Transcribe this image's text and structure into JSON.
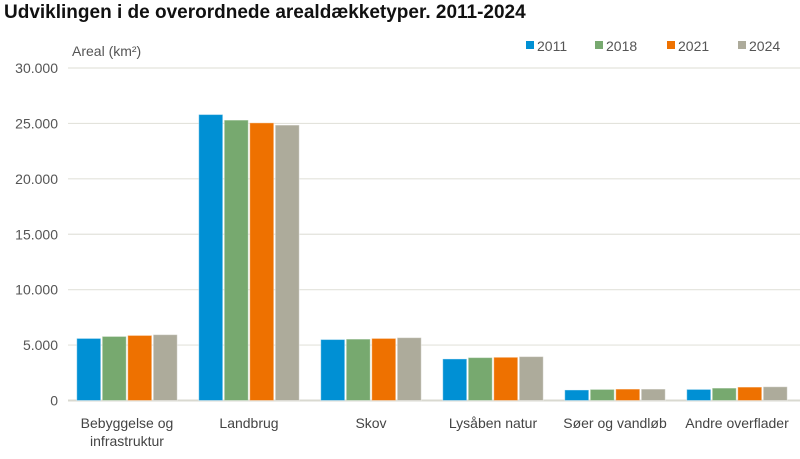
{
  "chart_data": {
    "type": "bar",
    "title": "Udviklingen i de overordnede arealdækketyper. 2011-2024",
    "ylabel": "Areal (km²)",
    "xlabel": "",
    "ylim": [
      0,
      30000
    ],
    "yticks": [
      "0",
      "5.000",
      "10.000",
      "15.000",
      "20.000",
      "25.000",
      "30.000"
    ],
    "grid": true,
    "legend": "top-right",
    "categories": [
      [
        "Bebyggelse og",
        "infrastruktur"
      ],
      [
        "Landbrug"
      ],
      [
        "Skov"
      ],
      [
        "Lysåben natur"
      ],
      [
        "Søer og vandløb"
      ],
      [
        "Andre overflader"
      ]
    ],
    "series": [
      {
        "name": "2011",
        "color": "#0090d4",
        "values": [
          5600,
          25800,
          5500,
          3750,
          950,
          1000
        ]
      },
      {
        "name": "2018",
        "color": "#77a96f",
        "values": [
          5780,
          25300,
          5540,
          3870,
          1000,
          1120
        ]
      },
      {
        "name": "2021",
        "color": "#ee7100",
        "values": [
          5870,
          25050,
          5600,
          3900,
          1030,
          1210
        ]
      },
      {
        "name": "2024",
        "color": "#adab9b",
        "values": [
          5940,
          24850,
          5670,
          3960,
          1030,
          1240
        ]
      }
    ]
  }
}
